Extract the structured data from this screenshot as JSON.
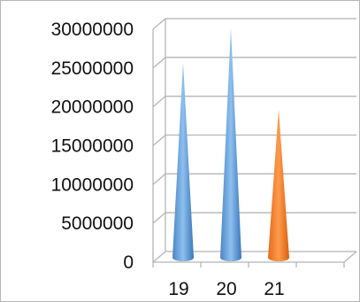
{
  "chart_data": {
    "type": "bar",
    "shape": "cone-3d",
    "categories": [
      "19",
      "20",
      "21"
    ],
    "values": [
      25000000,
      29500000,
      19000000
    ],
    "colors": [
      "#5b9bd5",
      "#5b9bd5",
      "#ed7d31"
    ],
    "yticks": [
      "0",
      "5000000",
      "10000000",
      "15000000",
      "20000000",
      "25000000",
      "30000000"
    ],
    "ylim": [
      0,
      30000000
    ],
    "grid": true,
    "legend": "none",
    "title": "",
    "xlabel": "",
    "ylabel": ""
  }
}
